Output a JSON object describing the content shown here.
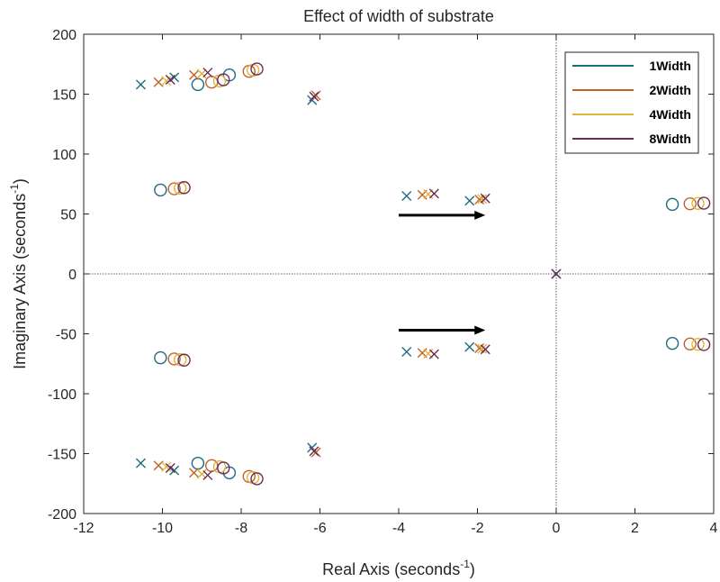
{
  "chart_data": {
    "type": "scatter",
    "title": "Effect of width of substrate",
    "xlabel": "Real Axis (seconds",
    "ylabel": "Imaginary Axis (seconds",
    "label_exponent": "-1",
    "xlim": [
      -12,
      4
    ],
    "ylim": [
      -200,
      200
    ],
    "xticks": [
      -12,
      -10,
      -8,
      -6,
      -4,
      -2,
      0,
      2,
      4
    ],
    "yticks": [
      -200,
      -150,
      -100,
      -50,
      0,
      50,
      100,
      150,
      200
    ],
    "grid": false,
    "legend_position": "top-right",
    "series": [
      {
        "name": "1Width",
        "color": "#1f6b80",
        "poles": [
          [
            -10.55,
            158
          ],
          [
            -9.7,
            164
          ],
          [
            -6.2,
            145
          ],
          [
            -3.8,
            65
          ],
          [
            -2.2,
            61
          ],
          [
            0,
            0
          ],
          [
            -10.55,
            -158
          ],
          [
            -9.7,
            -164
          ],
          [
            -6.2,
            -145
          ],
          [
            -3.8,
            -65
          ],
          [
            -2.2,
            -61
          ]
        ],
        "zeros": [
          [
            -10.05,
            70
          ],
          [
            -9.1,
            158
          ],
          [
            -8.3,
            166
          ],
          [
            2.95,
            58
          ],
          [
            -10.05,
            -70
          ],
          [
            -9.1,
            -158
          ],
          [
            -8.3,
            -166
          ],
          [
            2.95,
            -58
          ]
        ]
      },
      {
        "name": "2Width",
        "color": "#c0632a",
        "poles": [
          [
            -10.1,
            160
          ],
          [
            -9.2,
            166
          ],
          [
            -6.1,
            149
          ],
          [
            -3.4,
            66
          ],
          [
            -1.95,
            62
          ],
          [
            -10.1,
            -160
          ],
          [
            -9.2,
            -166
          ],
          [
            -6.1,
            -149
          ],
          [
            -3.4,
            -66
          ],
          [
            -1.95,
            -62
          ]
        ],
        "zeros": [
          [
            -9.7,
            71
          ],
          [
            -8.75,
            160
          ],
          [
            -7.8,
            169
          ],
          [
            3.4,
            58.5
          ],
          [
            -9.7,
            -71
          ],
          [
            -8.75,
            -160
          ],
          [
            -7.8,
            -169
          ],
          [
            3.4,
            -58.5
          ]
        ]
      },
      {
        "name": "4Width",
        "color": "#e3b33a",
        "poles": [
          [
            -9.9,
            161
          ],
          [
            -9.0,
            167
          ],
          [
            -3.25,
            66.5
          ],
          [
            -1.88,
            62.5
          ],
          [
            -9.9,
            -161
          ],
          [
            -9.0,
            -167
          ],
          [
            -3.25,
            -66.5
          ],
          [
            -1.88,
            -62.5
          ]
        ],
        "zeros": [
          [
            -9.55,
            71.5
          ],
          [
            -8.55,
            161
          ],
          [
            -7.7,
            170
          ],
          [
            3.6,
            58.8
          ],
          [
            -9.55,
            -71.5
          ],
          [
            -8.55,
            -161
          ],
          [
            -7.7,
            -170
          ],
          [
            3.6,
            -58.8
          ]
        ]
      },
      {
        "name": "8Width",
        "color": "#6b2a5a",
        "poles": [
          [
            -9.8,
            162
          ],
          [
            -8.85,
            168
          ],
          [
            -6.15,
            148
          ],
          [
            -3.1,
            67
          ],
          [
            -1.8,
            63
          ],
          [
            0,
            0
          ],
          [
            -9.8,
            -162
          ],
          [
            -8.85,
            -168
          ],
          [
            -6.15,
            -148
          ],
          [
            -3.1,
            -67
          ],
          [
            -1.8,
            -63
          ]
        ],
        "zeros": [
          [
            -9.45,
            72
          ],
          [
            -8.45,
            162
          ],
          [
            -7.6,
            171
          ],
          [
            3.75,
            59
          ],
          [
            -9.45,
            -72
          ],
          [
            -8.45,
            -162
          ],
          [
            -7.6,
            -171
          ],
          [
            3.75,
            -59
          ]
        ]
      }
    ],
    "annotations": [
      {
        "type": "arrow",
        "from": [
          -4,
          49
        ],
        "to": [
          -1.8,
          49
        ]
      },
      {
        "type": "arrow",
        "from": [
          -4,
          -47
        ],
        "to": [
          -1.8,
          -47
        ]
      }
    ]
  }
}
